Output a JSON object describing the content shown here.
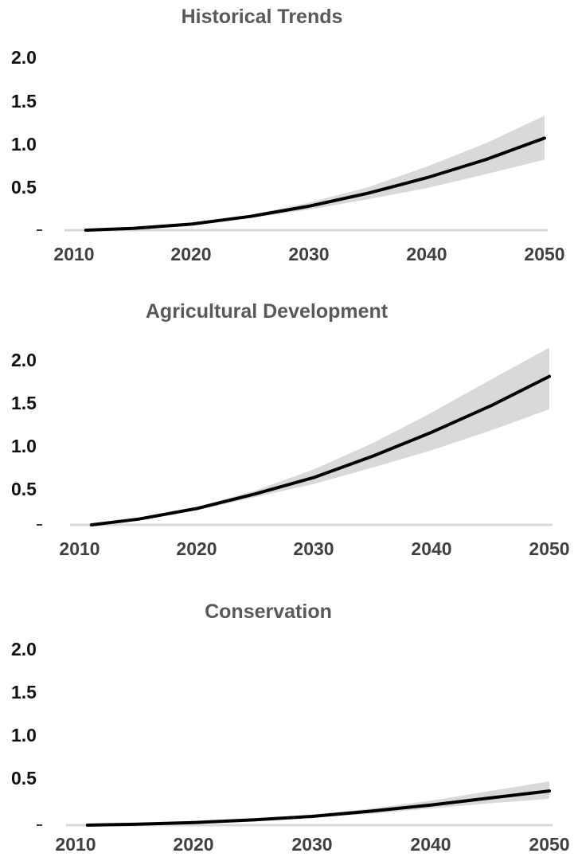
{
  "chart_data": [
    {
      "type": "area",
      "title": "Historical Trends",
      "xlabel": "",
      "ylabel": "",
      "xlim": [
        2010,
        2050
      ],
      "ylim": [
        0,
        2.0
      ],
      "x_ticks": [
        "2010",
        "2020",
        "2030",
        "2040",
        "2050"
      ],
      "y_ticks": [
        "2.0",
        "1.5",
        "1.0",
        "0.5"
      ],
      "grid": false,
      "x": [
        2011,
        2015,
        2020,
        2025,
        2030,
        2035,
        2040,
        2045,
        2050
      ],
      "series": [
        {
          "values": [
            0.0,
            0.02,
            0.07,
            0.16,
            0.28,
            0.43,
            0.61,
            0.82,
            1.07
          ]
        }
      ],
      "band_lower": [
        0.0,
        0.01,
        0.06,
        0.14,
        0.24,
        0.36,
        0.49,
        0.65,
        0.82
      ],
      "band_upper": [
        0.0,
        0.03,
        0.09,
        0.18,
        0.32,
        0.5,
        0.74,
        1.01,
        1.33
      ]
    },
    {
      "type": "area",
      "title": "Agricultural Development",
      "xlabel": "",
      "ylabel": "",
      "xlim": [
        2010,
        2050
      ],
      "ylim": [
        0,
        2.0
      ],
      "x_ticks": [
        "2010",
        "2020",
        "2030",
        "2040",
        "2050"
      ],
      "y_ticks": [
        "2.0",
        "1.5",
        "1.0",
        "0.5"
      ],
      "grid": false,
      "x": [
        2011,
        2015,
        2020,
        2025,
        2030,
        2035,
        2040,
        2045,
        2050
      ],
      "series": [
        {
          "values": [
            0.0,
            0.07,
            0.2,
            0.38,
            0.58,
            0.84,
            1.13,
            1.45,
            1.81
          ]
        }
      ],
      "band_lower": [
        0.0,
        0.06,
        0.18,
        0.34,
        0.5,
        0.7,
        0.91,
        1.15,
        1.41
      ],
      "band_upper": [
        0.0,
        0.08,
        0.22,
        0.42,
        0.68,
        1.0,
        1.37,
        1.77,
        2.16
      ]
    },
    {
      "type": "area",
      "title": "Conservation",
      "xlabel": "",
      "ylabel": "",
      "xlim": [
        2010,
        2050
      ],
      "ylim": [
        0,
        2.0
      ],
      "x_ticks": [
        "2010",
        "2020",
        "2030",
        "2040",
        "2050"
      ],
      "y_ticks": [
        "2.0",
        "1.5",
        "1.0",
        "0.5"
      ],
      "grid": false,
      "x": [
        2011,
        2015,
        2020,
        2025,
        2030,
        2035,
        2040,
        2045,
        2050
      ],
      "series": [
        {
          "values": [
            0.0,
            0.01,
            0.03,
            0.06,
            0.1,
            0.16,
            0.23,
            0.31,
            0.39
          ]
        }
      ],
      "band_lower": [
        0.0,
        0.005,
        0.02,
        0.05,
        0.09,
        0.13,
        0.19,
        0.25,
        0.3
      ],
      "band_upper": [
        0.0,
        0.015,
        0.04,
        0.08,
        0.12,
        0.19,
        0.28,
        0.39,
        0.5
      ]
    }
  ]
}
